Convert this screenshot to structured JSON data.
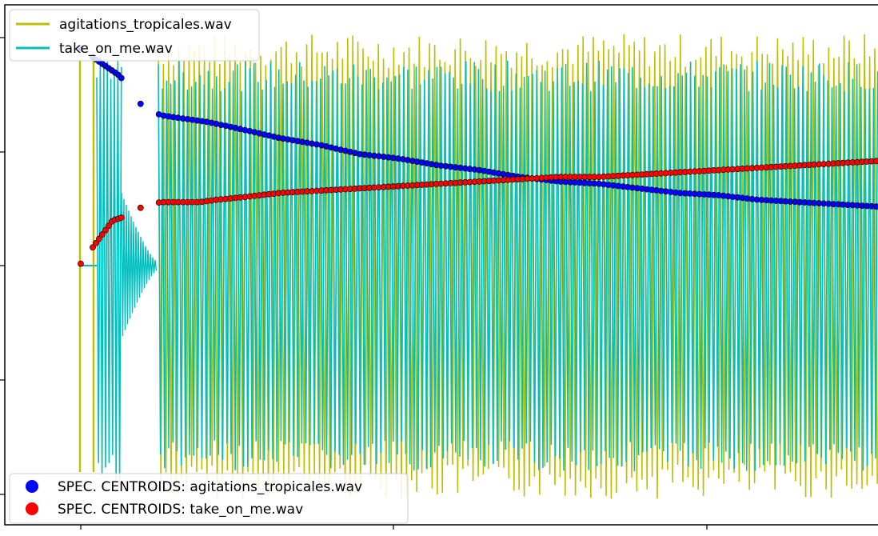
{
  "chart_data": {
    "type": "line",
    "title": "",
    "xlabel": "",
    "ylabel": "",
    "x_range": [
      0,
      1
    ],
    "y_range": [
      -1,
      1
    ],
    "legend_placement": [
      "upper-left",
      "lower-left"
    ],
    "waveform_series": [
      {
        "name": "agitations_tropicales.wav",
        "color": "#bfbf00"
      },
      {
        "name": "take_on_me.wav",
        "color": "#00bfbf"
      }
    ],
    "centroid_series": [
      {
        "name": "SPEC. CENTROIDS: agitations_tropicales.wav",
        "color": "#0000ff",
        "points": [
          [
            0.0,
            0.95
          ],
          [
            0.05,
            0.83
          ],
          [
            0.06,
            0.76
          ],
          [
            0.065,
            0.74
          ],
          [
            0.07,
            0.72
          ],
          [
            0.08,
            0.7
          ],
          [
            0.09,
            0.68
          ],
          [
            0.1,
            0.66
          ],
          [
            0.16,
            0.63
          ],
          [
            0.2,
            0.6
          ],
          [
            0.25,
            0.56
          ],
          [
            0.3,
            0.53
          ],
          [
            0.35,
            0.49
          ],
          [
            0.4,
            0.47
          ],
          [
            0.45,
            0.44
          ],
          [
            0.5,
            0.42
          ],
          [
            0.55,
            0.39
          ],
          [
            0.6,
            0.37
          ],
          [
            0.65,
            0.36
          ],
          [
            0.7,
            0.34
          ],
          [
            0.75,
            0.32
          ],
          [
            0.8,
            0.31
          ],
          [
            0.85,
            0.29
          ],
          [
            0.9,
            0.28
          ],
          [
            0.95,
            0.27
          ],
          [
            1.0,
            0.26
          ]
        ]
      },
      {
        "name": "SPEC. CENTROIDS: take_on_me.wav",
        "color": "#ff0000",
        "points": [
          [
            0.0,
            0.01
          ],
          [
            0.04,
            0.2
          ],
          [
            0.05,
            0.21
          ],
          [
            0.06,
            0.23
          ],
          [
            0.07,
            0.25
          ],
          [
            0.08,
            0.26
          ],
          [
            0.1,
            0.28
          ],
          [
            0.15,
            0.28
          ],
          [
            0.17,
            0.29
          ],
          [
            0.2,
            0.3
          ],
          [
            0.25,
            0.32
          ],
          [
            0.3,
            0.33
          ],
          [
            0.35,
            0.34
          ],
          [
            0.4,
            0.35
          ],
          [
            0.45,
            0.36
          ],
          [
            0.5,
            0.37
          ],
          [
            0.55,
            0.38
          ],
          [
            0.6,
            0.39
          ],
          [
            0.65,
            0.39
          ],
          [
            0.7,
            0.4
          ],
          [
            0.75,
            0.41
          ],
          [
            0.8,
            0.42
          ],
          [
            0.85,
            0.43
          ],
          [
            0.9,
            0.44
          ],
          [
            0.95,
            0.45
          ],
          [
            1.0,
            0.46
          ]
        ]
      }
    ]
  }
}
